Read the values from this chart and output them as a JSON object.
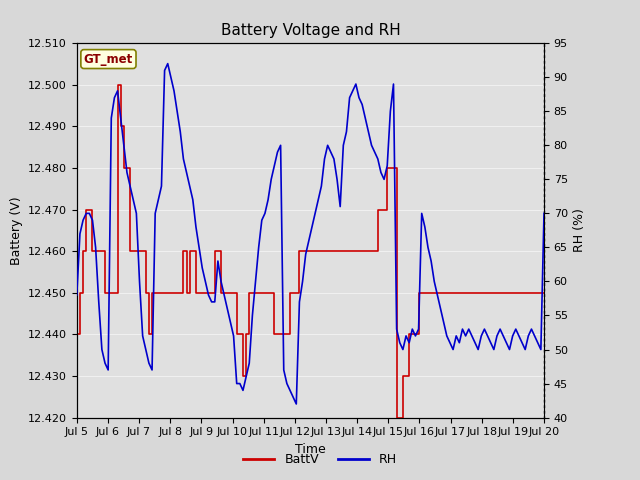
{
  "title": "Battery Voltage and RH",
  "xlabel": "Time",
  "ylabel_left": "Battery (V)",
  "ylabel_right": "RH (%)",
  "annotation": "GT_met",
  "left_ylim": [
    12.42,
    12.51
  ],
  "right_ylim": [
    40,
    95
  ],
  "left_yticks": [
    12.42,
    12.43,
    12.44,
    12.45,
    12.46,
    12.47,
    12.48,
    12.49,
    12.5,
    12.51
  ],
  "right_yticks": [
    40,
    45,
    50,
    55,
    60,
    65,
    70,
    75,
    80,
    85,
    90,
    95
  ],
  "xtick_labels": [
    "Jul 5",
    "Jul 6",
    "Jul 7",
    "Jul 8",
    "Jul 9",
    "Jul 10",
    "Jul 11",
    "Jul 12",
    "Jul 13",
    "Jul 14",
    "Jul 15",
    "Jul 16",
    "Jul 17",
    "Jul 18",
    "Jul 19",
    "Jul 20"
  ],
  "battv_color": "#cc0000",
  "rh_color": "#0000cc",
  "bg_color": "#d8d8d8",
  "plot_bg_color": "#e0e0e0",
  "grid_color": "#f0f0f0",
  "legend_battv": "BattV",
  "legend_rh": "RH",
  "battv_data": [
    12.44,
    12.45,
    12.46,
    12.47,
    12.47,
    12.46,
    12.46,
    12.46,
    12.46,
    12.45,
    12.45,
    12.45,
    12.45,
    12.5,
    12.49,
    12.48,
    12.48,
    12.46,
    12.46,
    12.46,
    12.46,
    12.46,
    12.45,
    12.44,
    12.45,
    12.45,
    12.45,
    12.45,
    12.45,
    12.45,
    12.45,
    12.45,
    12.45,
    12.45,
    12.46,
    12.45,
    12.46,
    12.46,
    12.45,
    12.45,
    12.45,
    12.45,
    12.45,
    12.45,
    12.46,
    12.46,
    12.45,
    12.45,
    12.45,
    12.45,
    12.45,
    12.44,
    12.44,
    12.43,
    12.44,
    12.45,
    12.45,
    12.45,
    12.45,
    12.45,
    12.45,
    12.45,
    12.45,
    12.44,
    12.44,
    12.44,
    12.44,
    12.44,
    12.45,
    12.45,
    12.45,
    12.46,
    12.46,
    12.46,
    12.46,
    12.46,
    12.46,
    12.46,
    12.46,
    12.46,
    12.46,
    12.46,
    12.46,
    12.46,
    12.46,
    12.46,
    12.46,
    12.46,
    12.46,
    12.46,
    12.46,
    12.46,
    12.46,
    12.46,
    12.46,
    12.46,
    12.47,
    12.47,
    12.47,
    12.48,
    12.48,
    12.48,
    12.42,
    12.42,
    12.43,
    12.43,
    12.44,
    12.44,
    12.44,
    12.45,
    12.45,
    12.45,
    12.45,
    12.45,
    12.45,
    12.45,
    12.45,
    12.45,
    12.45,
    12.45,
    12.45,
    12.45,
    12.45,
    12.45,
    12.45,
    12.45,
    12.45,
    12.45,
    12.45,
    12.45,
    12.45,
    12.45,
    12.45,
    12.45,
    12.45,
    12.45,
    12.45,
    12.45,
    12.45,
    12.45,
    12.45,
    12.45,
    12.45,
    12.45,
    12.45,
    12.45,
    12.45,
    12.45,
    12.45,
    12.45
  ],
  "rh_data": [
    58,
    67,
    69,
    70,
    70,
    69,
    65,
    57,
    50,
    48,
    47,
    84,
    87,
    88,
    84,
    80,
    76,
    74,
    72,
    70,
    60,
    52,
    50,
    48,
    47,
    70,
    72,
    74,
    91,
    92,
    90,
    88,
    85,
    82,
    78,
    76,
    74,
    72,
    68,
    65,
    62,
    60,
    58,
    57,
    57,
    63,
    60,
    58,
    56,
    54,
    52,
    45,
    45,
    44,
    46,
    48,
    55,
    60,
    65,
    69,
    70,
    72,
    75,
    77,
    79,
    80,
    47,
    45,
    44,
    43,
    42,
    57,
    60,
    64,
    66,
    68,
    70,
    72,
    74,
    78,
    80,
    79,
    78,
    75,
    71,
    80,
    82,
    87,
    88,
    89,
    87,
    86,
    84,
    82,
    80,
    79,
    78,
    76,
    75,
    77,
    85,
    89,
    53,
    51,
    50,
    52,
    51,
    53,
    52,
    53,
    70,
    68,
    65,
    63,
    60,
    58,
    56,
    54,
    52,
    51,
    50,
    52,
    51,
    53,
    52,
    53,
    52,
    51,
    50,
    52,
    53,
    52,
    51,
    50,
    52,
    53,
    52,
    51,
    50,
    52,
    53,
    52,
    51,
    50,
    52,
    53,
    52,
    51,
    50,
    70
  ]
}
